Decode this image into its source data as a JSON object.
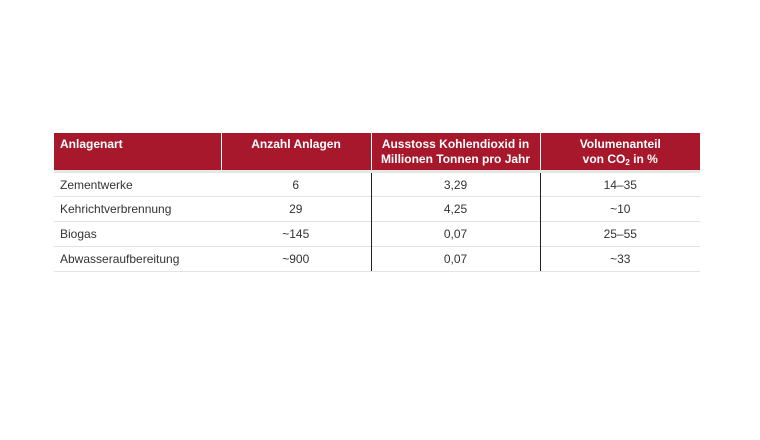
{
  "table": {
    "headers": {
      "col1": "Anlagenart",
      "col2": "Anzahl Anlagen",
      "col3_line1": "Ausstoss Kohlendioxid in",
      "col3_line2": "Millionen Tonnen pro Jahr",
      "col4_line1": "Volumenanteil",
      "col4_line2_prefix": "von CO",
      "col4_line2_sub": "2",
      "col4_line2_suffix": " in %"
    },
    "rows": [
      {
        "type": "Zementwerke",
        "count": "6",
        "co2": "3,29",
        "share": "14–35"
      },
      {
        "type": "Kehrichtverbrennung",
        "count": "29",
        "co2": "4,25",
        "share": "~10"
      },
      {
        "type": "Biogas",
        "count": "~145",
        "co2": "0,07",
        "share": "25–55"
      },
      {
        "type": "Abwasseraufbereitung",
        "count": "~900",
        "co2": "0,07",
        "share": "~33"
      }
    ]
  }
}
